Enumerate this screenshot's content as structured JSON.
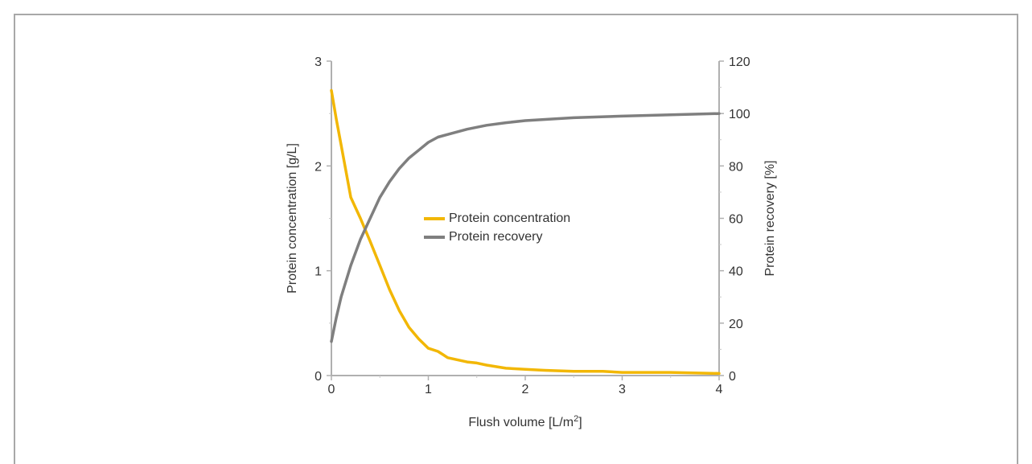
{
  "chart_data": {
    "type": "line",
    "title": "",
    "xlabel": "Flush volume [L/m",
    "xlabel_sup": "2",
    "xlabel_end": "]",
    "ylabel_left": "Protein concentration [g/L]",
    "ylabel_right": "Protein recovery [%]",
    "xlim": [
      0,
      4
    ],
    "ylim_left": [
      0,
      3
    ],
    "ylim_right": [
      0,
      120
    ],
    "x_ticks": [
      "0",
      "1",
      "2",
      "3",
      "4"
    ],
    "y_left_ticks": [
      "0",
      "1",
      "2",
      "3"
    ],
    "y_right_ticks": [
      "0",
      "20",
      "40",
      "60",
      "80",
      "100",
      "120"
    ],
    "grid": false,
    "legend_position": "center",
    "series": [
      {
        "name": "Protein concentration",
        "axis": "left",
        "color": "#f2b705",
        "x": [
          0,
          0.05,
          0.1,
          0.15,
          0.2,
          0.25,
          0.3,
          0.4,
          0.5,
          0.6,
          0.7,
          0.8,
          0.9,
          1.0,
          1.1,
          1.15,
          1.2,
          1.3,
          1.4,
          1.5,
          1.6,
          1.8,
          2.0,
          2.2,
          2.5,
          2.8,
          3.0,
          3.5,
          4.0
        ],
        "values": [
          2.72,
          2.45,
          2.2,
          1.95,
          1.7,
          1.6,
          1.5,
          1.28,
          1.05,
          0.82,
          0.62,
          0.46,
          0.35,
          0.26,
          0.23,
          0.2,
          0.17,
          0.15,
          0.13,
          0.12,
          0.1,
          0.07,
          0.06,
          0.05,
          0.04,
          0.04,
          0.03,
          0.03,
          0.02
        ]
      },
      {
        "name": "Protein recovery",
        "axis": "right",
        "color": "#7f7f7f",
        "x": [
          0,
          0.05,
          0.1,
          0.2,
          0.3,
          0.4,
          0.5,
          0.6,
          0.7,
          0.8,
          0.9,
          1.0,
          1.1,
          1.2,
          1.4,
          1.6,
          1.8,
          2.0,
          2.5,
          3.0,
          3.5,
          4.0
        ],
        "values": [
          13,
          22,
          30,
          42,
          52,
          60,
          68,
          74,
          79,
          83,
          86,
          89,
          91,
          92,
          94,
          95.5,
          96.5,
          97.3,
          98.4,
          99,
          99.5,
          100
        ]
      }
    ]
  }
}
